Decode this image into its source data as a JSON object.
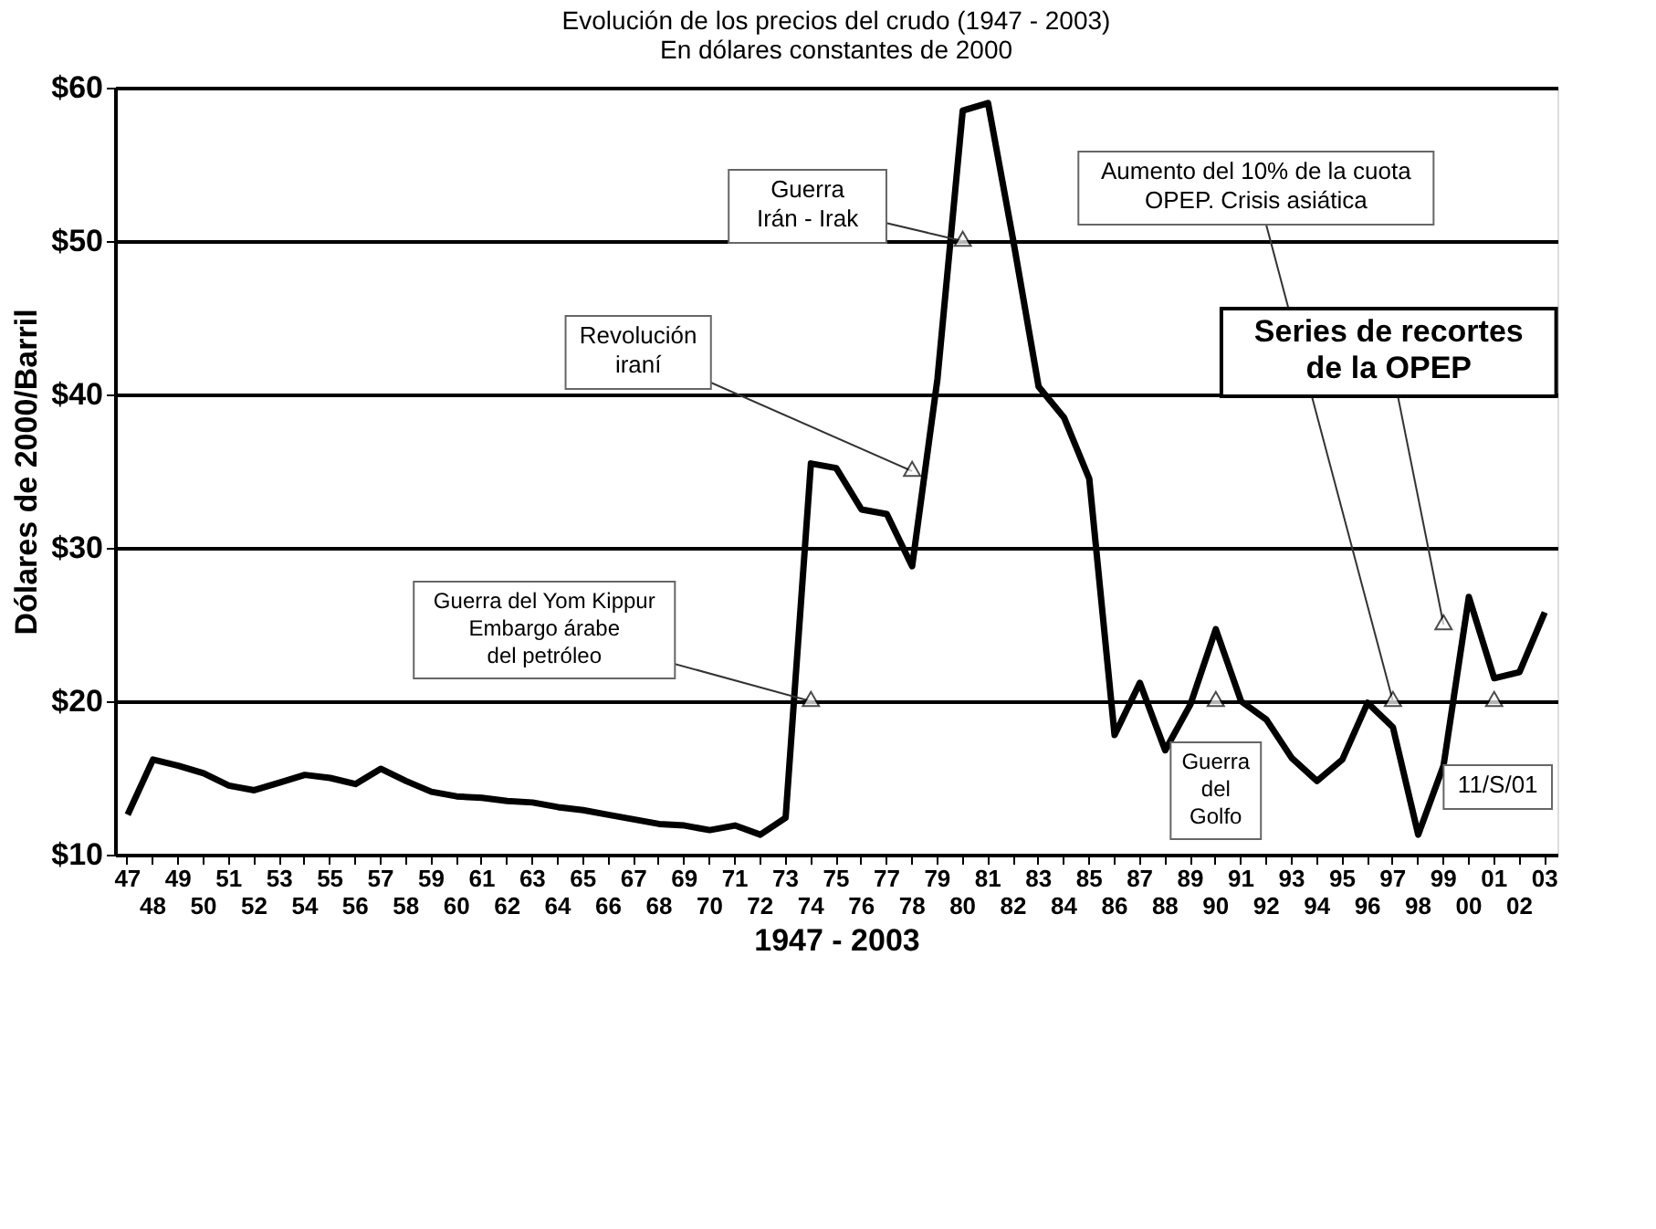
{
  "chart_data": {
    "type": "line",
    "title": "Evolución de los precios del crudo (1947 - 2003)\nEn dólares constantes  de 2000",
    "xlabel": "1947 - 2003",
    "ylabel": "Dólares de 2000/Barril",
    "categories": [
      "47",
      "48",
      "49",
      "50",
      "51",
      "52",
      "53",
      "54",
      "55",
      "56",
      "57",
      "58",
      "59",
      "60",
      "61",
      "62",
      "63",
      "64",
      "65",
      "66",
      "67",
      "68",
      "69",
      "70",
      "71",
      "72",
      "73",
      "74",
      "75",
      "76",
      "77",
      "78",
      "79",
      "80",
      "81",
      "82",
      "83",
      "84",
      "85",
      "86",
      "87",
      "88",
      "89",
      "90",
      "91",
      "92",
      "93",
      "94",
      "95",
      "96",
      "97",
      "98",
      "99",
      "00",
      "01",
      "02",
      "03"
    ],
    "series": [
      {
        "color": "#000000",
        "values": [
          12.6,
          16.2,
          15.8,
          15.3,
          14.5,
          14.2,
          14.7,
          15.2,
          15.0,
          14.6,
          15.6,
          14.8,
          14.1,
          13.8,
          13.7,
          13.5,
          13.4,
          13.1,
          12.9,
          12.6,
          12.3,
          12.0,
          11.9,
          11.6,
          11.9,
          11.3,
          12.4,
          35.5,
          35.2,
          32.5,
          32.2,
          28.8,
          41,
          58.5,
          59,
          50,
          40.5,
          38.5,
          34.5,
          17.8,
          21.2,
          16.8,
          19.8,
          24.7,
          20,
          18.8,
          16.3,
          14.8,
          16.2,
          19.9,
          18.3,
          11.3,
          15.8,
          26.8,
          21.5,
          21.9,
          25.8
        ]
      }
    ],
    "ylim": [
      10,
      60
    ],
    "yticks": [
      {
        "value": 10,
        "label": "$10"
      },
      {
        "value": 20,
        "label": "$20"
      },
      {
        "value": 30,
        "label": "$30"
      },
      {
        "value": 40,
        "label": "$40"
      },
      {
        "value": 50,
        "label": "$50"
      },
      {
        "value": 60,
        "label": "$60"
      }
    ],
    "grid": "y",
    "legend": false,
    "marker": "none",
    "line_style": "solid",
    "annotations": [
      {
        "text": "Guerra del Yom Kippur\nEmbargo árabe\ndel petróleo",
        "x": "74",
        "y": 20
      },
      {
        "text": "Revolución\niraní",
        "x": "78",
        "y": 35
      },
      {
        "text": "Guerra\nIrán - Irak",
        "x": "80",
        "y": 50
      },
      {
        "text": "Aumento del 10% de la cuota\nOPEP. Crisis asiática",
        "x": "97",
        "y": 20
      },
      {
        "text": "Series de recortes\nde la OPEP",
        "x": "99",
        "y": 25
      },
      {
        "text": "Guerra\ndel\nGolfo",
        "x": "90",
        "y": 20
      },
      {
        "text": "11/S/01",
        "x": "01",
        "y": 20
      }
    ]
  }
}
